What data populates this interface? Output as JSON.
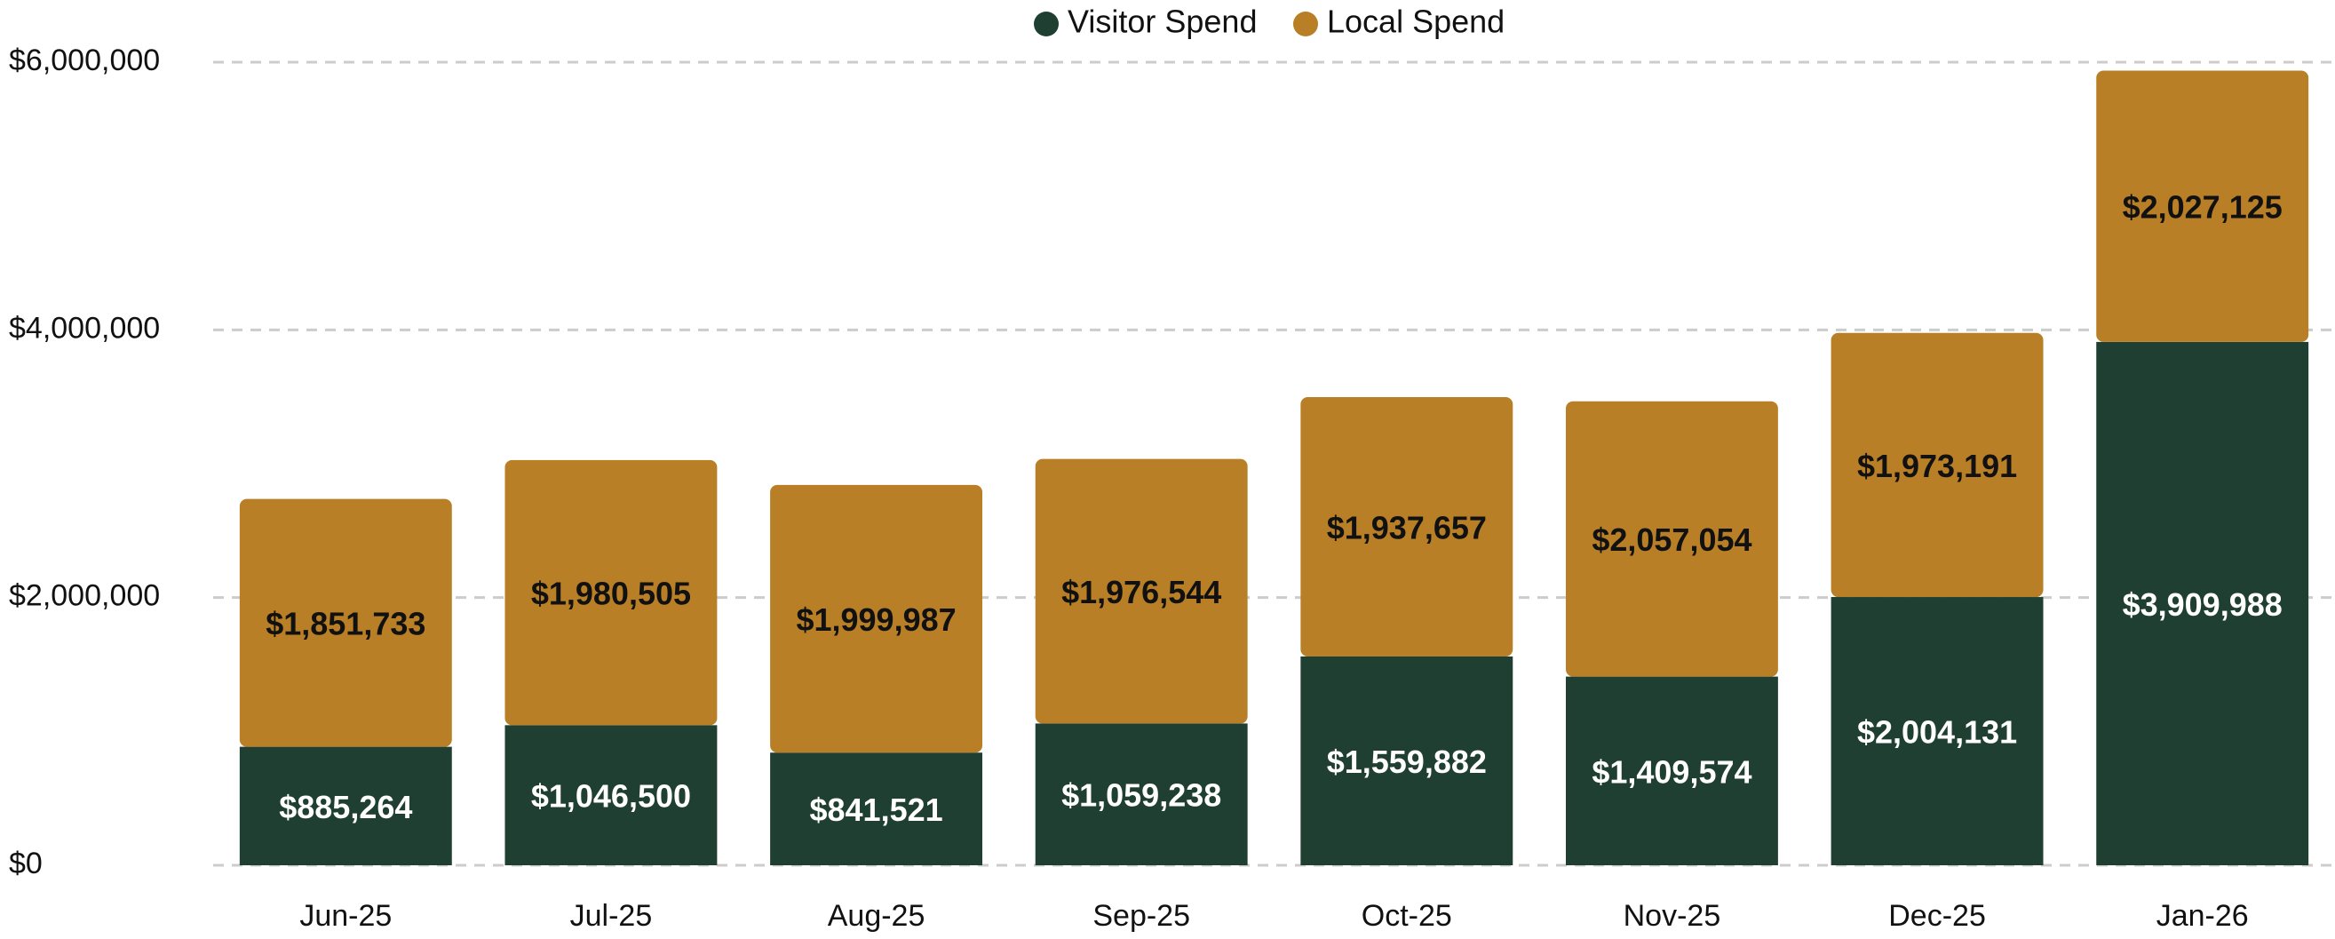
{
  "chart_data": {
    "type": "stacked_bar",
    "categories": [
      "Jun-25",
      "Jul-25",
      "Aug-25",
      "Sep-25",
      "Oct-25",
      "Nov-25",
      "Dec-25",
      "Jan-26"
    ],
    "series": [
      {
        "name": "Visitor Spend",
        "color": "#1f3f33",
        "values": [
          885264,
          1046500,
          841521,
          1059238,
          1559882,
          1409574,
          2004131,
          3909988
        ],
        "value_labels": [
          "$885,264",
          "$1,046,500",
          "$841,521",
          "$1,059,238",
          "$1,559,882",
          "$1,409,574",
          "$2,004,131",
          "$3,909,988"
        ]
      },
      {
        "name": "Local Spend",
        "color": "#b87f26",
        "values": [
          1851733,
          1980505,
          1999987,
          1976544,
          1937657,
          2057054,
          1973191,
          2027125
        ],
        "value_labels": [
          "$1,851,733",
          "$1,980,505",
          "$1,999,987",
          "$1,976,544",
          "$1,937,657",
          "$2,057,054",
          "$1,973,191",
          "$2,027,125"
        ]
      }
    ],
    "ylim": [
      0,
      6000000
    ],
    "yticks": [
      {
        "value": 0,
        "label": "$0"
      },
      {
        "value": 2000000,
        "label": "$2,000,000"
      },
      {
        "value": 4000000,
        "label": "$4,000,000"
      },
      {
        "value": 6000000,
        "label": "$6,000,000"
      }
    ],
    "grid": true,
    "legend": "top"
  }
}
